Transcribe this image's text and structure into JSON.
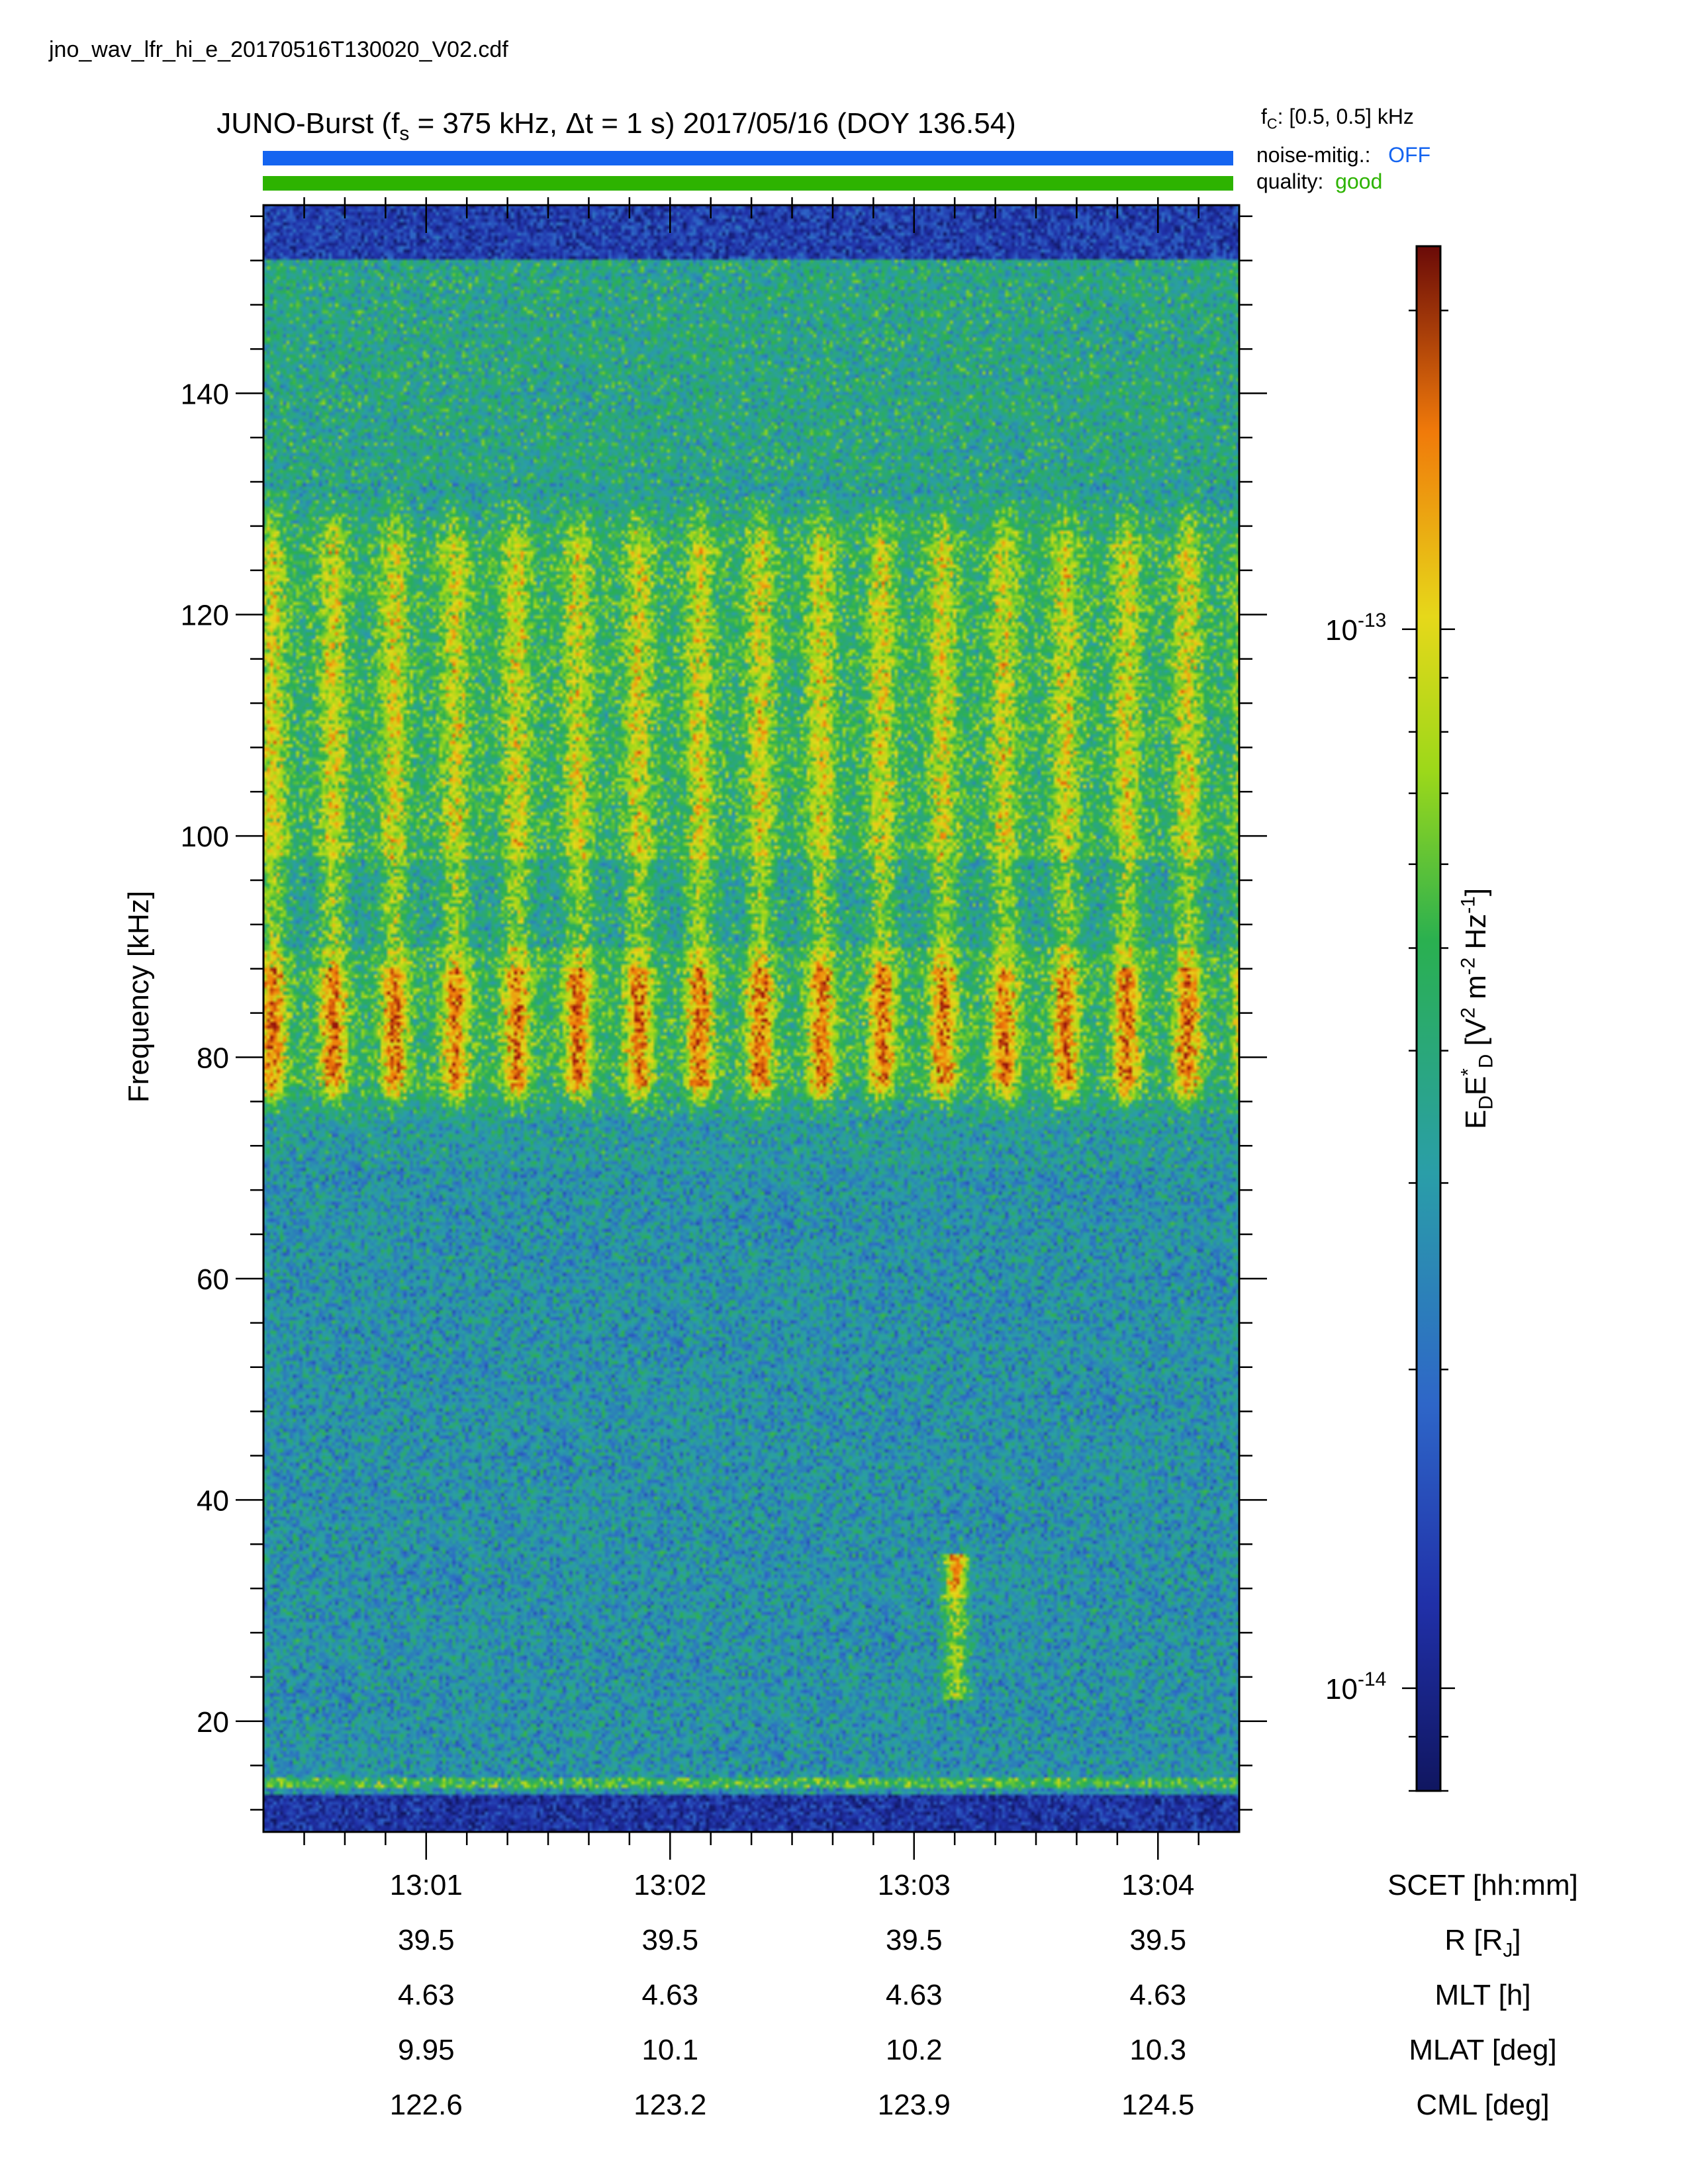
{
  "file_name": "jno_wav_lfr_hi_e_20170516T130020_V02.cdf",
  "title": {
    "prefix": "JUNO-Burst (f",
    "fs_sub": "s",
    "fs_text": " = 375 kHz, Δt = 1 s)  2017/05/16 (DOY 136.54)"
  },
  "fc": {
    "label": "f",
    "sub": "C",
    "text": ": [0.5, 0.5] kHz"
  },
  "status": {
    "noise_label": "noise-mitig.:",
    "noise_value": "OFF",
    "noise_color": "#1464f0",
    "quality_label": "quality:",
    "quality_value": "good",
    "quality_color": "#2db300"
  },
  "chart_data": {
    "type": "heatmap",
    "title": "JUNO-Burst (fs = 375 kHz, Δt = 1 s)  2017/05/16 (DOY 136.54)",
    "ylabel": "Frequency [kHz]",
    "ylim": [
      10,
      157
    ],
    "yticks": [
      "20",
      "40",
      "60",
      "80",
      "100",
      "120",
      "140"
    ],
    "ytick_values": [
      20,
      40,
      60,
      80,
      100,
      120,
      140
    ],
    "xlim_minutes": [
      0.333,
      4.333
    ],
    "x_unit_label": "SCET [hh:mm]",
    "xticks": [
      "13:01",
      "13:02",
      "13:03",
      "13:04"
    ],
    "xtick_values_minutes": [
      1,
      2,
      3,
      4
    ],
    "colorbar": {
      "scale": "log",
      "range": [
        8e-15,
        2.3e-13
      ],
      "tick_base": [
        "10",
        "10"
      ],
      "tick_exp": [
        "-13",
        "-14"
      ],
      "tick_values": [
        1e-13,
        1e-14
      ],
      "label_parts": [
        "E",
        "D",
        "E",
        "*",
        "D",
        " [V",
        "2",
        " m",
        "-2",
        " Hz",
        "-1",
        "]"
      ]
    },
    "grid": false,
    "features": {
      "emission_band_khz": [
        74,
        132
      ],
      "intense_band_khz": [
        76,
        88
      ],
      "burst_count": 16,
      "low_freq_blob_khz": [
        22,
        35
      ],
      "low_freq_blob_minute": 3.17
    }
  },
  "ephemeris": {
    "rows": [
      {
        "label": "R [R",
        "sub": "J",
        "end": "]",
        "values": [
          "39.5",
          "39.5",
          "39.5",
          "39.5"
        ]
      },
      {
        "label": "MLT [h]",
        "sub": "",
        "end": "",
        "values": [
          "4.63",
          "4.63",
          "4.63",
          "4.63"
        ]
      },
      {
        "label": "MLAT [deg]",
        "sub": "",
        "end": "",
        "values": [
          "9.95",
          "10.1",
          "10.2",
          "10.3"
        ]
      },
      {
        "label": "CML [deg]",
        "sub": "",
        "end": "",
        "values": [
          "122.6",
          "123.2",
          "123.9",
          "124.5"
        ]
      }
    ]
  }
}
